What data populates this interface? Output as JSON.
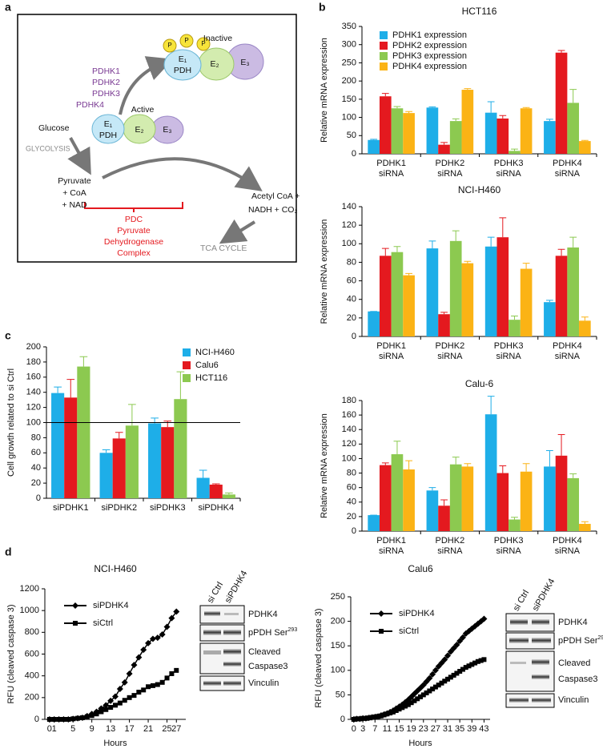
{
  "panel_labels": [
    "a",
    "b",
    "c",
    "d"
  ],
  "diagram": {
    "inactive": "Inactive",
    "active": "Active",
    "phosphate": "P",
    "enzymes": [
      "E₁",
      "PDH",
      "E₂",
      "E₃"
    ],
    "kinases": [
      "PDHK1",
      "PDHK2",
      "PDHK3",
      "PDHK4"
    ],
    "glucose": "Glucose",
    "glycolysis": "GLYCOLYSIS",
    "pyruvate": [
      "Pyruvate",
      "+ CoA",
      "+ NAD"
    ],
    "pdc": [
      "PDC",
      "Pyruvate",
      "Dehydrogenase",
      "Complex"
    ],
    "products": [
      "Acetyl CoA +",
      "NADH + CO₂"
    ],
    "tca": "TCA CYCLE"
  },
  "blots": {
    "lanes": [
      "si Ctrl",
      "siPDHK4"
    ],
    "rows": [
      {
        "text": "PDHK4"
      },
      {
        "text": "pPDH Ser",
        "sup": "293"
      },
      {
        "text": "Cleaved"
      },
      {
        "text": "Caspase3"
      },
      {
        "text": "Vinculin"
      }
    ]
  },
  "chart_data": [
    {
      "type": "bar",
      "title": "HCT116",
      "ylabel": "Relative mRNA expression",
      "categories": [
        [
          "PDHK1",
          "siRNA"
        ],
        [
          "PDHK2",
          "siRNA"
        ],
        [
          "PDHK3",
          "siRNA"
        ],
        [
          "PDHK4",
          "siRNA"
        ]
      ],
      "series": [
        {
          "name": "PDHK1 expression",
          "color": "#1eaee8",
          "values": [
            38,
            127,
            113,
            90
          ],
          "errors": [
            2,
            2,
            30,
            5
          ]
        },
        {
          "name": "PDHK2 expression",
          "color": "#e4191f",
          "values": [
            158,
            25,
            97,
            278
          ],
          "errors": [
            8,
            6,
            8,
            6
          ]
        },
        {
          "name": "PDHK3 expression",
          "color": "#8cc950",
          "values": [
            125,
            90,
            8,
            140
          ],
          "errors": [
            5,
            6,
            5,
            37
          ]
        },
        {
          "name": "PDHK4 expression",
          "color": "#fbb315",
          "values": [
            112,
            176,
            125,
            35
          ],
          "errors": [
            4,
            3,
            2,
            2
          ]
        }
      ],
      "ylim": [
        0,
        350
      ],
      "yticks": [
        0,
        50,
        100,
        150,
        200,
        250,
        300,
        350
      ],
      "grid": false
    },
    {
      "type": "bar",
      "title": "NCI-H460",
      "ylabel": "Relative  mRNA expression",
      "categories": [
        [
          "PDHK1",
          "siRNA"
        ],
        [
          "PDHK2",
          "siRNA"
        ],
        [
          "PDHK3",
          "siRNA"
        ],
        [
          "PDHK4",
          "siRNA"
        ]
      ],
      "series": [
        {
          "color": "#1eaee8",
          "values": [
            27,
            95,
            97,
            37
          ],
          "errors": [
            0,
            8,
            10,
            2
          ]
        },
        {
          "color": "#e4191f",
          "values": [
            87,
            24,
            107,
            87
          ],
          "errors": [
            8,
            2,
            21,
            7
          ]
        },
        {
          "color": "#8cc950",
          "values": [
            91,
            103,
            18,
            96
          ],
          "errors": [
            6,
            11,
            4,
            11
          ]
        },
        {
          "color": "#fbb315",
          "values": [
            66,
            79,
            73,
            17
          ],
          "errors": [
            2,
            2,
            6,
            4
          ]
        }
      ],
      "ylim": [
        0,
        140
      ],
      "yticks": [
        0,
        20,
        40,
        60,
        80,
        100,
        120,
        140
      ],
      "grid": false
    },
    {
      "type": "bar",
      "title": "Calu-6",
      "ylabel": "Relative  mRNA expression",
      "categories": [
        [
          "PDHK1",
          "siRNA"
        ],
        [
          "PDHK2",
          "siRNA"
        ],
        [
          "PDHK3",
          "siRNA"
        ],
        [
          "PDHK4",
          "siRNA"
        ]
      ],
      "series": [
        {
          "color": "#1eaee8",
          "values": [
            22,
            56,
            161,
            89
          ],
          "errors": [
            0,
            4,
            25,
            22
          ]
        },
        {
          "color": "#e4191f",
          "values": [
            91,
            35,
            80,
            104
          ],
          "errors": [
            3,
            8,
            10,
            29
          ]
        },
        {
          "color": "#8cc950",
          "values": [
            106,
            92,
            16,
            73
          ],
          "errors": [
            18,
            10,
            3,
            6
          ]
        },
        {
          "color": "#fbb315",
          "values": [
            85,
            89,
            82,
            10
          ],
          "errors": [
            12,
            4,
            11,
            3
          ]
        }
      ],
      "ylim": [
        0,
        180
      ],
      "yticks": [
        0,
        20,
        40,
        60,
        80,
        100,
        120,
        140,
        160,
        180
      ],
      "grid": false
    },
    {
      "type": "bar",
      "ylabel": "Cell growth related to si Ctrl",
      "categories": [
        "siPDHK1",
        "siPDHK2",
        "siPDHK3",
        "siPDHK4"
      ],
      "series": [
        {
          "name": "NCI-H460",
          "color": "#1eaee8",
          "values": [
            139,
            60,
            99,
            27
          ],
          "errors": [
            8,
            4,
            7,
            10
          ]
        },
        {
          "name": "Calu6",
          "color": "#e4191f",
          "values": [
            133,
            79,
            94,
            18
          ],
          "errors": [
            24,
            8,
            8,
            1
          ]
        },
        {
          "name": "HCT116",
          "color": "#8cc950",
          "values": [
            174,
            96,
            131,
            5
          ],
          "errors": [
            13,
            28,
            36,
            2
          ]
        }
      ],
      "hline": 100,
      "ylim": [
        0,
        200
      ],
      "yticks": [
        0,
        20,
        40,
        60,
        80,
        100,
        120,
        140,
        160,
        180,
        200
      ],
      "grid": false
    },
    {
      "type": "line",
      "title": "NCI-H460",
      "xlabel": "Hours",
      "ylabel": "RFU  (cleaved caspase 3)",
      "x": [
        0,
        1,
        2,
        3,
        4,
        5,
        6,
        7,
        8,
        9,
        10,
        11,
        12,
        13,
        14,
        15,
        16,
        17,
        18,
        19,
        20,
        21,
        22,
        23,
        24,
        25,
        26,
        27
      ],
      "series": [
        {
          "name": "siPDHK4",
          "color": "#000000",
          "marker": "diamond",
          "values": [
            0,
            0,
            0,
            0,
            0,
            5,
            10,
            15,
            30,
            50,
            70,
            100,
            130,
            170,
            210,
            280,
            340,
            420,
            500,
            570,
            640,
            700,
            740,
            750,
            780,
            850,
            930,
            990
          ]
        },
        {
          "name": "siCtrl",
          "color": "#000000",
          "marker": "square",
          "values": [
            0,
            0,
            0,
            0,
            0,
            5,
            10,
            15,
            25,
            35,
            50,
            70,
            90,
            110,
            130,
            150,
            175,
            200,
            220,
            250,
            270,
            300,
            310,
            320,
            340,
            380,
            420,
            450
          ]
        }
      ],
      "xlim": [
        -1,
        29
      ],
      "xticks": [
        0,
        1,
        5,
        9,
        13,
        17,
        21,
        25,
        27
      ],
      "ylim": [
        0,
        1200
      ],
      "yticks": [
        0,
        200,
        400,
        600,
        800,
        1000,
        1200
      ],
      "grid": false
    },
    {
      "type": "line",
      "title": "Calu6",
      "xlabel": "Hours",
      "ylabel": "RFU  (cleaved caspase 3)",
      "x": [
        0,
        1,
        2,
        3,
        4,
        5,
        6,
        7,
        8,
        9,
        10,
        11,
        12,
        13,
        14,
        15,
        16,
        17,
        18,
        19,
        20,
        21,
        22,
        23,
        24,
        25,
        26,
        27,
        28,
        29,
        30,
        31,
        32,
        33,
        34,
        35,
        36,
        37,
        38,
        39,
        40,
        41,
        42,
        43
      ],
      "series": [
        {
          "name": "siPDHK4",
          "color": "#000000",
          "marker": "diamond",
          "values": [
            0,
            1,
            1,
            2,
            2,
            3,
            4,
            5,
            6,
            8,
            10,
            12,
            15,
            18,
            22,
            26,
            30,
            35,
            40,
            46,
            52,
            58,
            64,
            70,
            77,
            84,
            92,
            100,
            108,
            115,
            122,
            130,
            138,
            145,
            152,
            160,
            167,
            175,
            180,
            185,
            190,
            195,
            200,
            205
          ]
        },
        {
          "name": "siCtrl",
          "color": "#000000",
          "marker": "square",
          "values": [
            0,
            1,
            1,
            2,
            2,
            3,
            4,
            5,
            6,
            7,
            9,
            11,
            13,
            15,
            18,
            21,
            24,
            27,
            30,
            34,
            38,
            42,
            46,
            50,
            54,
            58,
            62,
            66,
            70,
            74,
            78,
            82,
            86,
            90,
            94,
            98,
            102,
            106,
            109,
            112,
            115,
            118,
            120,
            122
          ]
        }
      ],
      "xlim": [
        -1,
        45
      ],
      "xticks": [
        0,
        3,
        7,
        11,
        15,
        19,
        23,
        27,
        31,
        35,
        39,
        43
      ],
      "ylim": [
        0,
        250
      ],
      "yticks": [
        0,
        50,
        100,
        150,
        200,
        250
      ],
      "grid": false
    }
  ]
}
